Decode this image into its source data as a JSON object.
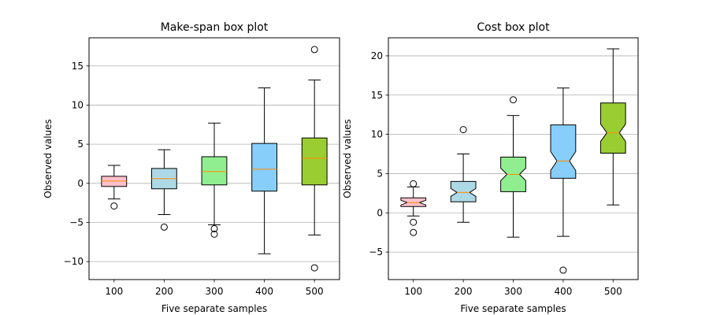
{
  "chart_data": [
    {
      "type": "box",
      "title": "Make-span box plot",
      "xlabel": "Five separate samples",
      "ylabel": "Observed values",
      "categories": [
        "100",
        "200",
        "300",
        "400",
        "500"
      ],
      "ylim": [
        -12.3,
        18.6
      ],
      "yticks": [
        -10,
        -5,
        0,
        5,
        10,
        15
      ],
      "ytick_labels": [
        "−10",
        "−5",
        "0",
        "5",
        "10",
        "15"
      ],
      "grid": "horizontal",
      "notched": false,
      "colors": [
        "#ffc0cb",
        "#add8e6",
        "#90ee90",
        "#87cefa",
        "#9acd32"
      ],
      "median_color": "#ff8c00",
      "boxes": [
        {
          "whislo": -2.0,
          "q1": -0.4,
          "med": 0.3,
          "q3": 0.9,
          "whishi": 2.3,
          "fliers": [
            -2.9
          ]
        },
        {
          "whislo": -4.0,
          "q1": -0.7,
          "med": 0.6,
          "q3": 1.9,
          "whishi": 4.3,
          "fliers": [
            -5.6
          ]
        },
        {
          "whislo": -5.3,
          "q1": -0.2,
          "med": 1.5,
          "q3": 3.4,
          "whishi": 7.7,
          "fliers": [
            -5.8,
            -6.5
          ]
        },
        {
          "whislo": -9.0,
          "q1": -1.0,
          "med": 1.8,
          "q3": 5.1,
          "whishi": 12.2,
          "fliers": []
        },
        {
          "whislo": -6.6,
          "q1": -0.2,
          "med": 3.2,
          "q3": 5.8,
          "whishi": 13.2,
          "fliers": [
            17.1,
            -10.8
          ]
        }
      ]
    },
    {
      "type": "box",
      "title": "Cost box plot",
      "xlabel": "Five separate samples",
      "ylabel": "Observed values",
      "categories": [
        "100",
        "200",
        "300",
        "400",
        "500"
      ],
      "ylim": [
        -8.5,
        22.3
      ],
      "yticks": [
        -5,
        0,
        5,
        10,
        15,
        20
      ],
      "ytick_labels": [
        "−5",
        "0",
        "5",
        "10",
        "15",
        "20"
      ],
      "grid": "horizontal",
      "notched": true,
      "colors": [
        "#ffc0cb",
        "#add8e6",
        "#90ee90",
        "#87cefa",
        "#9acd32"
      ],
      "median_color": "#ff8c00",
      "boxes": [
        {
          "whislo": -0.4,
          "q1": 0.8,
          "med": 1.3,
          "q3": 1.9,
          "whishi": 3.3,
          "notchlo": 1.0,
          "notchhi": 1.6,
          "fliers": [
            3.7,
            -1.2,
            -2.5
          ]
        },
        {
          "whislo": -1.2,
          "q1": 1.4,
          "med": 2.6,
          "q3": 4.0,
          "whishi": 7.5,
          "notchlo": 2.1,
          "notchhi": 3.1,
          "fliers": [
            10.6
          ]
        },
        {
          "whislo": -3.1,
          "q1": 2.7,
          "med": 4.9,
          "q3": 7.1,
          "whishi": 12.4,
          "notchlo": 4.1,
          "notchhi": 5.7,
          "fliers": [
            14.4
          ]
        },
        {
          "whislo": -3.0,
          "q1": 4.4,
          "med": 6.6,
          "q3": 11.2,
          "whishi": 15.9,
          "notchlo": 5.4,
          "notchhi": 7.8,
          "fliers": [
            -7.3
          ]
        },
        {
          "whislo": 1.0,
          "q1": 7.6,
          "med": 10.2,
          "q3": 14.0,
          "whishi": 20.9,
          "notchlo": 9.1,
          "notchhi": 11.3,
          "fliers": []
        }
      ]
    }
  ]
}
